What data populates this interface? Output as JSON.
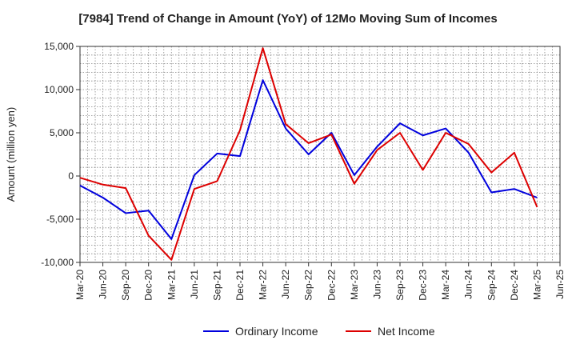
{
  "chart_data": {
    "type": "line",
    "title": "[7984]  Trend of Change in Amount (YoY) of 12Mo Moving Sum of Incomes",
    "xlabel": "",
    "ylabel": "Amount (million yen)",
    "ylim": [
      -10000,
      15000
    ],
    "yticks": [
      -10000,
      -5000,
      0,
      5000,
      10000,
      15000
    ],
    "ytick_labels": [
      "-10,000",
      "-5,000",
      "0",
      "5,000",
      "10,000",
      "15,000"
    ],
    "categories": [
      "Mar-20",
      "Jun-20",
      "Sep-20",
      "Dec-20",
      "Mar-21",
      "Jun-21",
      "Sep-21",
      "Dec-21",
      "Mar-22",
      "Jun-22",
      "Sep-22",
      "Dec-22",
      "Mar-23",
      "Jun-23",
      "Sep-23",
      "Dec-23",
      "Mar-24",
      "Jun-24",
      "Sep-24",
      "Dec-24",
      "Mar-25",
      "Jun-25"
    ],
    "grid": true,
    "legend_position": "bottom",
    "series": [
      {
        "name": "Ordinary Income",
        "color": "#0000dd",
        "values": [
          -1100,
          -2500,
          -4300,
          -4000,
          -7300,
          100,
          2600,
          2300,
          11100,
          5500,
          2500,
          5000,
          100,
          3400,
          6100,
          4700,
          5500,
          2700,
          -1900,
          -1500,
          -2500,
          null
        ]
      },
      {
        "name": "Net Income",
        "color": "#dd0000",
        "values": [
          -200,
          -1000,
          -1400,
          -6900,
          -9700,
          -1500,
          -600,
          5300,
          14800,
          6000,
          3800,
          4800,
          -900,
          3000,
          5000,
          700,
          5000,
          3700,
          400,
          2700,
          -3600,
          null
        ]
      }
    ]
  }
}
